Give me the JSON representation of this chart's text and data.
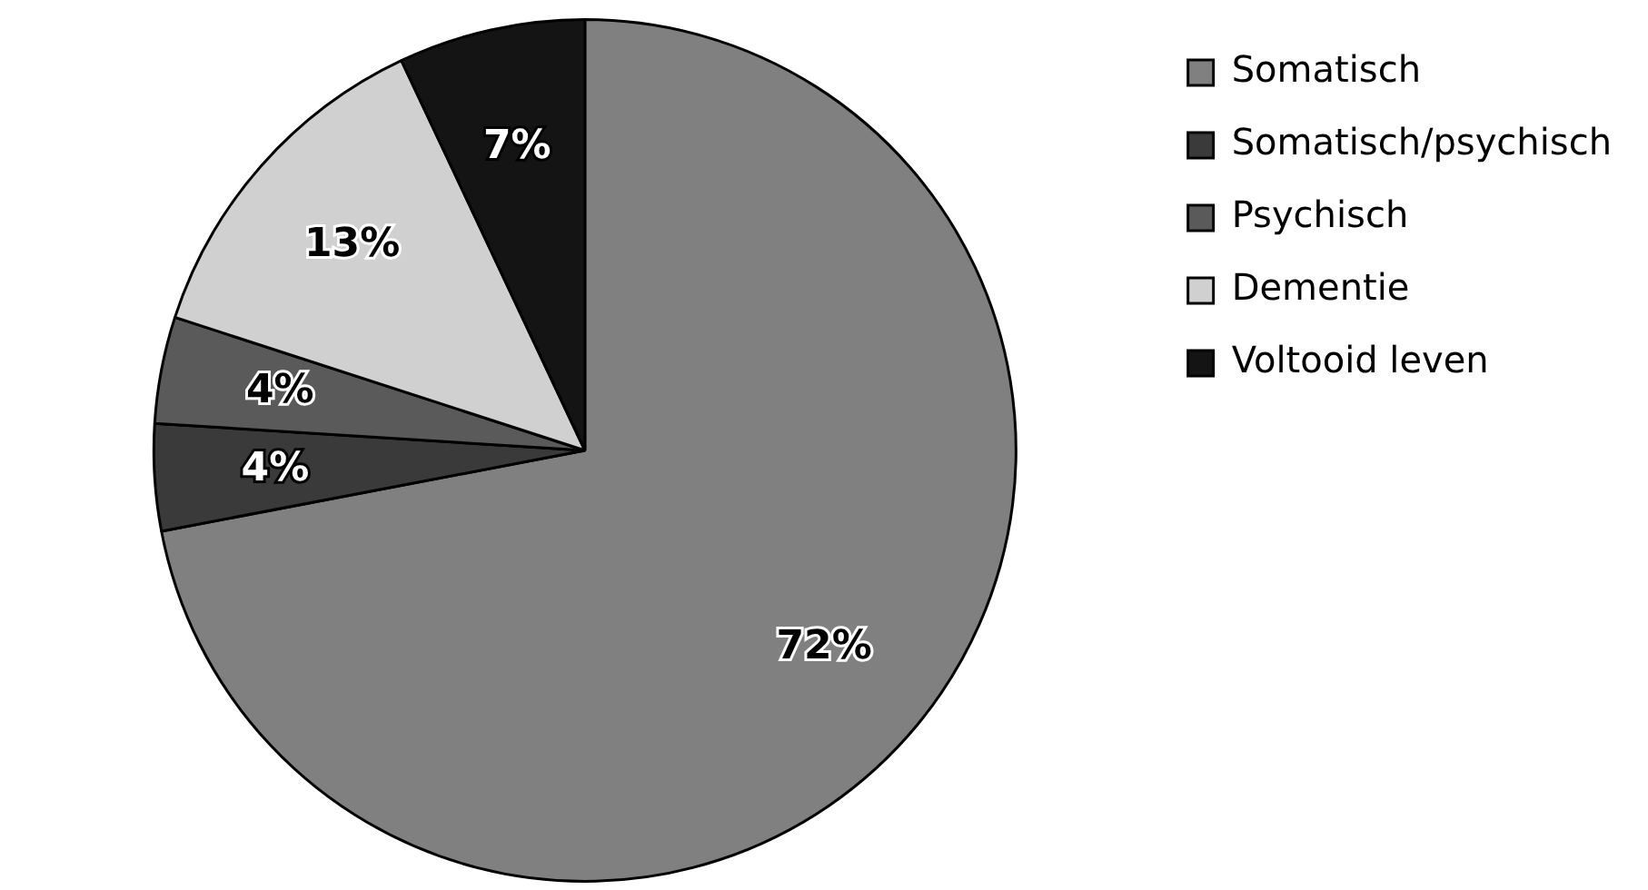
{
  "chart_data": {
    "type": "pie",
    "categories": [
      "Somatisch",
      "Somatisch/psychisch",
      "Psychisch",
      "Dementie",
      "Voltooid leven"
    ],
    "values": [
      72,
      4,
      4,
      13,
      7
    ],
    "colors": [
      "#808080",
      "#3a3a3a",
      "#5a5a5a",
      "#d0d0d0",
      "#141414"
    ],
    "value_labels": [
      "72%",
      "4%",
      "4%",
      "13%",
      "7%"
    ],
    "legend": "top right"
  }
}
